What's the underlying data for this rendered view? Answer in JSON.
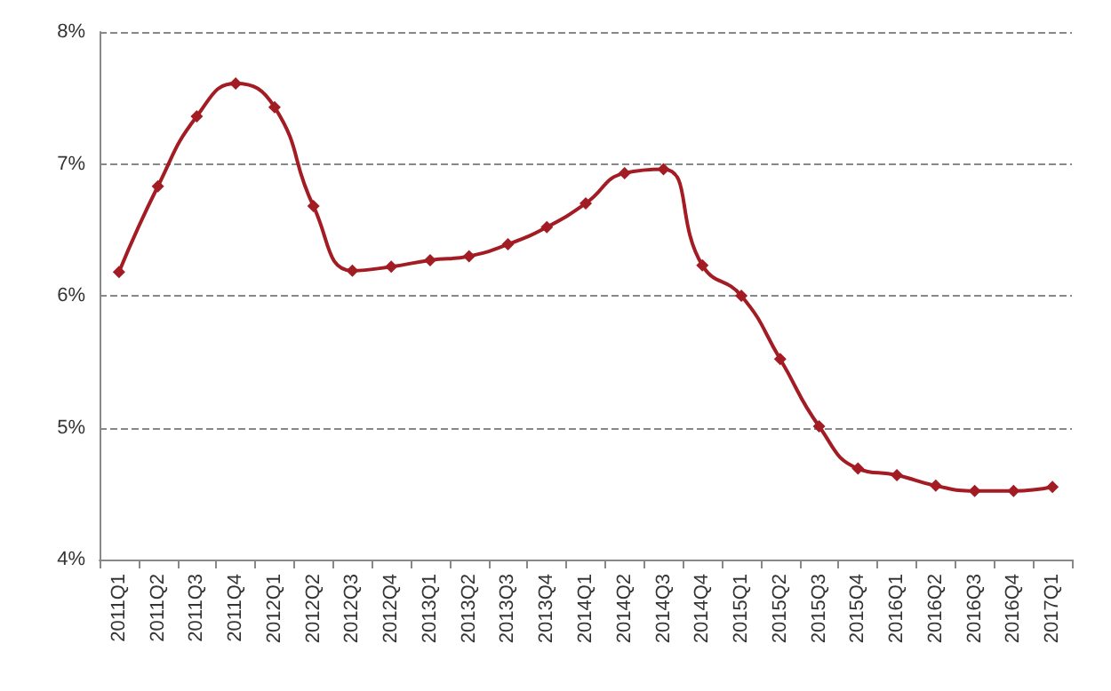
{
  "chart_data": {
    "type": "line",
    "categories": [
      "2011Q1",
      "2011Q2",
      "2011Q3",
      "2011Q4",
      "2012Q1",
      "2012Q2",
      "2012Q3",
      "2012Q4",
      "2013Q1",
      "2013Q2",
      "2013Q3",
      "2013Q4",
      "2014Q1",
      "2014Q2",
      "2014Q3",
      "2014Q4",
      "2015Q1",
      "2015Q2",
      "2015Q3",
      "2015Q4",
      "2016Q1",
      "2016Q2",
      "2016Q3",
      "2016Q4",
      "2017Q1"
    ],
    "series": [
      {
        "color": "#a31b23",
        "values": [
          6.18,
          6.83,
          7.36,
          7.61,
          7.43,
          6.68,
          6.19,
          6.22,
          6.27,
          6.3,
          6.39,
          6.52,
          6.7,
          6.93,
          6.96,
          6.23,
          6.0,
          5.52,
          5.01,
          4.69,
          4.64,
          4.56,
          4.52,
          4.52,
          4.55
        ]
      }
    ],
    "ylim": [
      4,
      8
    ],
    "yticks": [
      {
        "value": 4,
        "label": "4%"
      },
      {
        "value": 5,
        "label": "5%"
      },
      {
        "value": 6,
        "label": "6%"
      },
      {
        "value": 7,
        "label": "7%"
      },
      {
        "value": 8,
        "label": "8%"
      }
    ],
    "grid": "y",
    "marker": "diamond",
    "line_style": "solid"
  }
}
